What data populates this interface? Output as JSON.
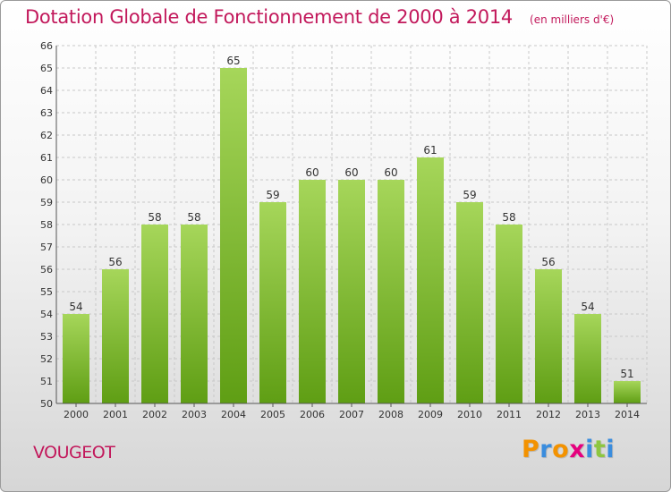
{
  "chart_data": {
    "type": "bar",
    "title": "Dotation Globale de Fonctionnement de 2000 à 2014",
    "subtitle": "(en milliers d'€)",
    "categories": [
      "2000",
      "2001",
      "2002",
      "2003",
      "2004",
      "2005",
      "2006",
      "2007",
      "2008",
      "2009",
      "2010",
      "2011",
      "2012",
      "2013",
      "2014"
    ],
    "values": [
      54,
      56,
      58,
      58,
      65,
      59,
      60,
      60,
      60,
      61,
      59,
      58,
      56,
      54,
      51
    ],
    "ylim": [
      50,
      66
    ],
    "yticks": [
      50,
      51,
      52,
      53,
      54,
      55,
      56,
      57,
      58,
      59,
      60,
      61,
      62,
      63,
      64,
      65,
      66
    ],
    "xlabel": "",
    "ylabel": "",
    "grid": true,
    "colors": {
      "bar_light": "#a6d65a",
      "bar_dark": "#5f9e14",
      "accent": "#c2185b"
    }
  },
  "footer": {
    "commune": "VOUGEOT",
    "brand": {
      "letters": [
        "P",
        "r",
        "o",
        "x",
        "i",
        "t",
        "i"
      ],
      "colors": [
        "#f39200",
        "#3a8dde",
        "#f39200",
        "#e5007e",
        "#3a8dde",
        "#8dc63f",
        "#3a8dde"
      ]
    }
  }
}
